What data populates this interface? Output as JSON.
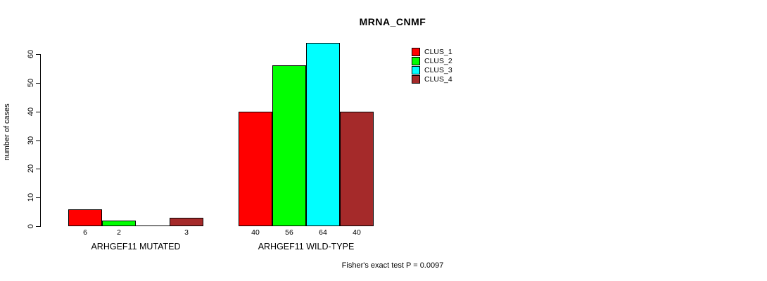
{
  "chart_data": {
    "type": "bar",
    "title": "MRNA_CNMF",
    "ylabel": "number of cases",
    "xlabel": "",
    "ylim": [
      0,
      60
    ],
    "yticks": [
      0,
      10,
      20,
      30,
      40,
      50,
      60
    ],
    "grid": false,
    "legend_position": "top-right",
    "series": [
      {
        "name": "CLUS_1",
        "color": "#FF0000"
      },
      {
        "name": "CLUS_2",
        "color": "#00FF00"
      },
      {
        "name": "CLUS_3",
        "color": "#00FFFF"
      },
      {
        "name": "CLUS_4",
        "color": "#A52A2A"
      }
    ],
    "groups": [
      {
        "label": "ARHGEF11 MUTATED",
        "values": [
          6,
          2,
          0,
          3
        ]
      },
      {
        "label": "ARHGEF11 WILD-TYPE",
        "values": [
          40,
          56,
          64,
          40
        ]
      }
    ],
    "annotation": "Fisher's exact test P = 0.0097"
  }
}
